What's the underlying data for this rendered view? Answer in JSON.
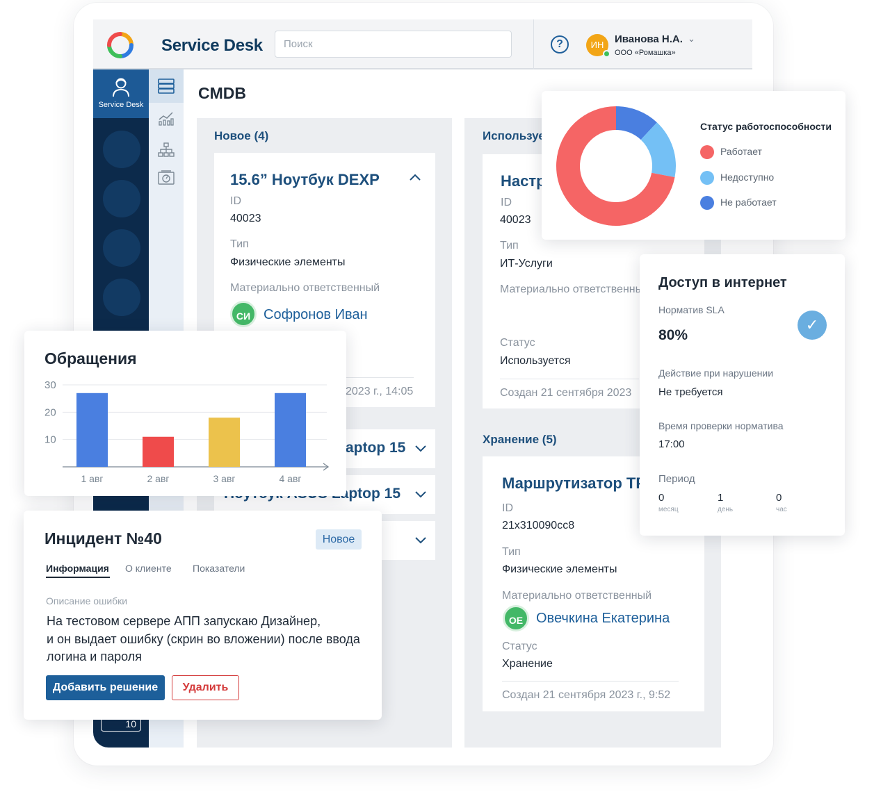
{
  "header": {
    "app_title": "Service Desk",
    "search_placeholder": "Поиск",
    "help": "?",
    "user": {
      "initials": "ИН",
      "name": "Иванова Н.А.",
      "org": "ООО «Ромашка»"
    }
  },
  "sidebar": {
    "active_label": "Service Desk",
    "badge_count": "10"
  },
  "page": {
    "title": "CMDB"
  },
  "columns": {
    "new": {
      "header": "Новое (4)",
      "card": {
        "title": "15.6” Ноутбук DEXP",
        "id_label": "ID",
        "id_value": "40023",
        "type_label": "Тип",
        "type_value": "Физические элементы",
        "owner_label": "Материально ответственный",
        "owner_initials": "СИ",
        "owner_name": "Софронов Иван",
        "created": "2023 г., 14:05"
      },
      "collapsed": [
        "aptop 15",
        "Ноутбук ASUS Laptop 15",
        ""
      ]
    },
    "used": {
      "header": "Используется",
      "card": {
        "title": "Настройка",
        "id_label": "ID",
        "id_value": "40023",
        "type_label": "Тип",
        "type_value": "ИТ-Услуги",
        "owner_label": "Материально ответственный",
        "status_label": "Статус",
        "status_value": "Используется",
        "created": "Создан 21 сентября 2023"
      }
    },
    "storage": {
      "header": "Хранение (5)",
      "card": {
        "title": "Маршрутизатор TP",
        "id_label": "ID",
        "id_value": "21x310090cc8",
        "type_label": "Тип",
        "type_value": "Физические элементы",
        "owner_label": "Материально ответственный",
        "owner_initials": "ОЕ",
        "owner_name": "Овечкина Екатерина",
        "status_label": "Статус",
        "status_value": "Хранение",
        "created": "Создан 21 сентября 2023 г., 9:52"
      }
    }
  },
  "status_widget": {
    "legend_title": "Статус работоспособности",
    "items": [
      {
        "label": "Работает",
        "color": "#f56565"
      },
      {
        "label": "Недоступно",
        "color": "#74c0f5"
      },
      {
        "label": "Не работает",
        "color": "#4a7fe0"
      }
    ]
  },
  "sla": {
    "title": "Доступ в интернет",
    "norm_label": "Норматив SLA",
    "norm_value": "80%",
    "action_label": "Действие при нарушении",
    "action_value": "Не требуется",
    "check_time_label": "Время проверки норматива",
    "check_time_value": "17:00",
    "period_label": "Период",
    "period": [
      {
        "value": "0",
        "unit": "месяц"
      },
      {
        "value": "1",
        "unit": "день"
      },
      {
        "value": "0",
        "unit": "час"
      }
    ]
  },
  "requests": {
    "title": "Обращения"
  },
  "incident": {
    "title": "Инцидент №40",
    "badge": "Новое",
    "tabs": [
      "Информация",
      "О клиенте",
      "Показатели"
    ],
    "desc_label": "Описание ошибки",
    "desc_lines": [
      "На тестовом сервере АПП запускаю Дизайнер,",
      "и он выдает ошибку (скрин во вложении) после ввода",
      "логина и пароля"
    ],
    "add_button": "Добавить решение",
    "delete_button": "Удалить"
  },
  "chart_data": [
    {
      "type": "bar",
      "title": "Обращения",
      "categories": [
        "1 авг",
        "2 авг",
        "3 авг",
        "4 авг"
      ],
      "values": [
        27,
        11,
        18,
        27
      ],
      "colors": [
        "#4a7fe0",
        "#ef4b4b",
        "#ecc24c",
        "#4a7fe0"
      ],
      "yticks": [
        10,
        20,
        30
      ],
      "ylim": [
        0,
        30
      ],
      "grid": true
    },
    {
      "type": "pie",
      "title": "",
      "categories": [
        "Работает",
        "Недоступно",
        "Не работает"
      ],
      "values": [
        72,
        16,
        12
      ],
      "colors": [
        "#f56565",
        "#74c0f5",
        "#4a7fe0"
      ],
      "legend": "right"
    }
  ]
}
